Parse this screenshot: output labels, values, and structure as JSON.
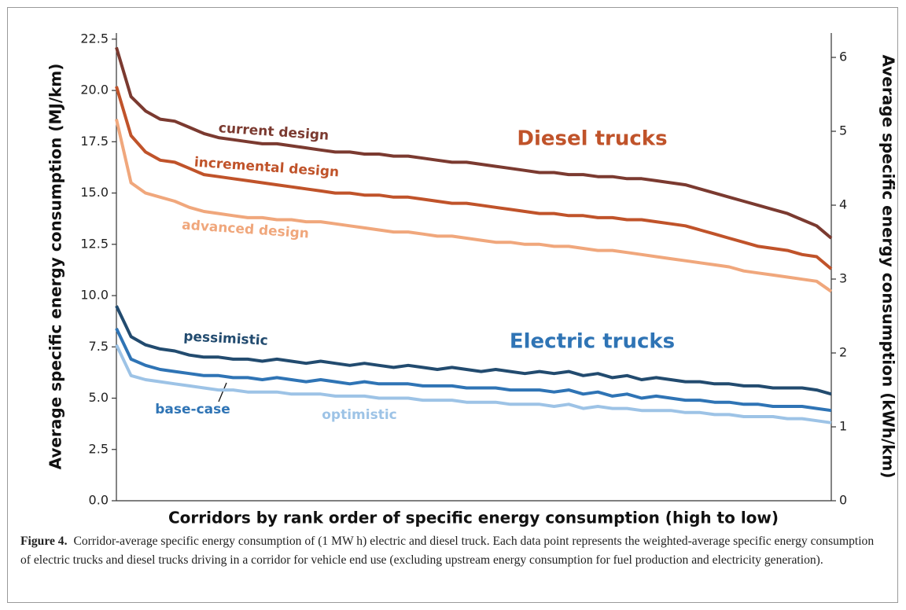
{
  "chart_data": {
    "type": "line",
    "y_label": "Average specific energy consumption (MJ/km)",
    "y2_label": "Average specific energy consumption (kWh/km)",
    "x_label": "Corridors by rank order of specific energy consumption (high to low)",
    "annotations": [
      "Diesel trucks",
      "Electric trucks"
    ],
    "categories": [
      null,
      null,
      null,
      null,
      null,
      null,
      null,
      null,
      null,
      null,
      null,
      null,
      null,
      null,
      null,
      null,
      null,
      null,
      null,
      null,
      null,
      null,
      null,
      null,
      null,
      null,
      null,
      null,
      null,
      null,
      null,
      null,
      null,
      null,
      null,
      null,
      null,
      null,
      null,
      null,
      null,
      null,
      null,
      null,
      null,
      null,
      null,
      null,
      null,
      null
    ],
    "ylim": [
      0,
      22.8
    ],
    "yticks": [
      {
        "value": 0,
        "label": "0.0"
      },
      2.5,
      {
        "value": 5,
        "label": "5.0"
      },
      7.5,
      {
        "value": 10,
        "label": "10.0"
      },
      12.5,
      {
        "value": 15,
        "label": "15.0"
      },
      17.5,
      {
        "value": 20,
        "label": "20.0"
      },
      22.5
    ],
    "y2lim": [
      0,
      6.33
    ],
    "y2ticks": [
      0,
      1,
      2,
      3,
      4,
      5,
      6
    ],
    "series": [
      {
        "name": "current design",
        "color": "#7b3a30",
        "values": [
          22.1,
          19.7,
          19.0,
          18.6,
          18.5,
          18.2,
          17.9,
          17.7,
          17.6,
          17.5,
          17.4,
          17.4,
          17.3,
          17.2,
          17.1,
          17.0,
          17.0,
          16.9,
          16.9,
          16.8,
          16.8,
          16.7,
          16.6,
          16.5,
          16.5,
          16.4,
          16.3,
          16.2,
          16.1,
          16.0,
          16.0,
          15.9,
          15.9,
          15.8,
          15.8,
          15.7,
          15.7,
          15.6,
          15.5,
          15.4,
          15.2,
          15.0,
          14.8,
          14.6,
          14.4,
          14.2,
          14.0,
          13.7,
          13.4,
          12.8
        ]
      },
      {
        "name": "incremental design",
        "color": "#c0532a",
        "values": [
          20.2,
          17.8,
          17.0,
          16.6,
          16.5,
          16.2,
          15.9,
          15.8,
          15.7,
          15.6,
          15.5,
          15.4,
          15.3,
          15.2,
          15.1,
          15.0,
          15.0,
          14.9,
          14.9,
          14.8,
          14.8,
          14.7,
          14.6,
          14.5,
          14.5,
          14.4,
          14.3,
          14.2,
          14.1,
          14.0,
          14.0,
          13.9,
          13.9,
          13.8,
          13.8,
          13.7,
          13.7,
          13.6,
          13.5,
          13.4,
          13.2,
          13.0,
          12.8,
          12.6,
          12.4,
          12.3,
          12.2,
          12.0,
          11.9,
          11.3
        ]
      },
      {
        "name": "advanced design",
        "color": "#f0a77c",
        "values": [
          18.6,
          15.5,
          15.0,
          14.8,
          14.6,
          14.3,
          14.1,
          14.0,
          13.9,
          13.8,
          13.8,
          13.7,
          13.7,
          13.6,
          13.6,
          13.5,
          13.4,
          13.3,
          13.2,
          13.1,
          13.1,
          13.0,
          12.9,
          12.9,
          12.8,
          12.7,
          12.6,
          12.6,
          12.5,
          12.5,
          12.4,
          12.4,
          12.3,
          12.2,
          12.2,
          12.1,
          12.0,
          11.9,
          11.8,
          11.7,
          11.6,
          11.5,
          11.4,
          11.2,
          11.1,
          11.0,
          10.9,
          10.8,
          10.7,
          10.2
        ]
      },
      {
        "name": "pessimistic",
        "color": "#224b6f",
        "values": [
          9.5,
          8.0,
          7.6,
          7.4,
          7.3,
          7.1,
          7.0,
          7.0,
          6.9,
          6.9,
          6.8,
          6.9,
          6.8,
          6.7,
          6.8,
          6.7,
          6.6,
          6.7,
          6.6,
          6.5,
          6.6,
          6.5,
          6.4,
          6.5,
          6.4,
          6.3,
          6.4,
          6.3,
          6.2,
          6.3,
          6.2,
          6.3,
          6.1,
          6.2,
          6.0,
          6.1,
          5.9,
          6.0,
          5.9,
          5.8,
          5.8,
          5.7,
          5.7,
          5.6,
          5.6,
          5.5,
          5.5,
          5.5,
          5.4,
          5.2
        ]
      },
      {
        "name": "base-case",
        "color": "#2f74b5",
        "values": [
          8.4,
          6.9,
          6.6,
          6.4,
          6.3,
          6.2,
          6.1,
          6.1,
          6.0,
          6.0,
          5.9,
          6.0,
          5.9,
          5.8,
          5.9,
          5.8,
          5.7,
          5.8,
          5.7,
          5.7,
          5.7,
          5.6,
          5.6,
          5.6,
          5.5,
          5.5,
          5.5,
          5.4,
          5.4,
          5.4,
          5.3,
          5.4,
          5.2,
          5.3,
          5.1,
          5.2,
          5.0,
          5.1,
          5.0,
          4.9,
          4.9,
          4.8,
          4.8,
          4.7,
          4.7,
          4.6,
          4.6,
          4.6,
          4.5,
          4.4
        ]
      },
      {
        "name": "optimistic",
        "color": "#9dc3e6",
        "values": [
          7.6,
          6.1,
          5.9,
          5.8,
          5.7,
          5.6,
          5.5,
          5.4,
          5.4,
          5.3,
          5.3,
          5.3,
          5.2,
          5.2,
          5.2,
          5.1,
          5.1,
          5.1,
          5.0,
          5.0,
          5.0,
          4.9,
          4.9,
          4.9,
          4.8,
          4.8,
          4.8,
          4.7,
          4.7,
          4.7,
          4.6,
          4.7,
          4.5,
          4.6,
          4.5,
          4.5,
          4.4,
          4.4,
          4.4,
          4.3,
          4.3,
          4.2,
          4.2,
          4.1,
          4.1,
          4.1,
          4.0,
          4.0,
          3.9,
          3.8
        ]
      }
    ]
  },
  "caption": {
    "label": "Figure 4.",
    "text": "Corridor-average specific energy consumption of (1 MW h) electric and diesel truck. Each data point represents the weighted-average specific energy consumption of electric trucks and diesel trucks driving in a corridor for vehicle end use (excluding upstream energy consumption for fuel production and electricity generation)."
  }
}
